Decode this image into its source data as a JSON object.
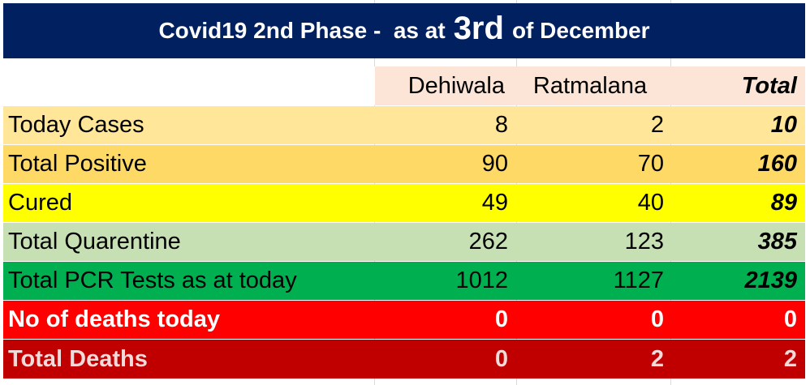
{
  "title": {
    "prefix": "Covid19 2nd Phase -  as at",
    "highlight": "3rd",
    "suffix": "of December"
  },
  "colors": {
    "title_bg": "#002060",
    "header_bg": "#fce4d6",
    "today_cases_bg": "#ffe699",
    "total_positive_bg": "#ffd966",
    "cured_bg": "#ffff00",
    "total_quarentine_bg": "#c6e0b4",
    "pcr_bg": "#00b050",
    "deaths_today_bg": "#ff0000",
    "total_deaths_bg": "#c00000"
  },
  "chart_data": {
    "type": "table",
    "columns": [
      "",
      "Dehiwala",
      "Ratmalana",
      "Total"
    ],
    "rows": [
      {
        "label": "Today Cases",
        "values": [
          "8",
          "2",
          "10"
        ]
      },
      {
        "label": "Total Positive",
        "values": [
          "90",
          "70",
          "160"
        ]
      },
      {
        "label": "Cured",
        "values": [
          "49",
          "40",
          "89"
        ]
      },
      {
        "label": "Total Quarentine",
        "values": [
          "262",
          "123",
          "385"
        ]
      },
      {
        "label": "Total PCR Tests as at today",
        "values": [
          "1012",
          "1127",
          "2139"
        ]
      },
      {
        "label": "No of deaths today",
        "values": [
          "0",
          "0",
          "0"
        ]
      },
      {
        "label": "Total Deaths",
        "values": [
          "0",
          "2",
          "2"
        ]
      }
    ]
  }
}
